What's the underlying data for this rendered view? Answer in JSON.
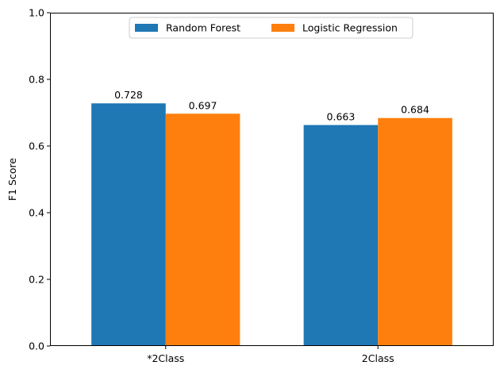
{
  "chart_data": {
    "type": "bar",
    "categories": [
      "*2Class",
      "2Class"
    ],
    "series": [
      {
        "name": "Random Forest",
        "values": [
          0.728,
          0.663
        ],
        "color": "#1f77b4"
      },
      {
        "name": "Logistic Regression",
        "values": [
          0.697,
          0.684
        ],
        "color": "#ff7f0e"
      }
    ],
    "data_labels": [
      [
        "0.728",
        "0.663"
      ],
      [
        "0.697",
        "0.684"
      ]
    ],
    "ylabel": "F1 Score",
    "xlabel": "",
    "title": "",
    "ylim": [
      0,
      1.0
    ],
    "yticks": [
      "0.0",
      "0.2",
      "0.4",
      "0.6",
      "0.8",
      "1.0"
    ],
    "legend_placement": "top-center",
    "grid": false
  }
}
